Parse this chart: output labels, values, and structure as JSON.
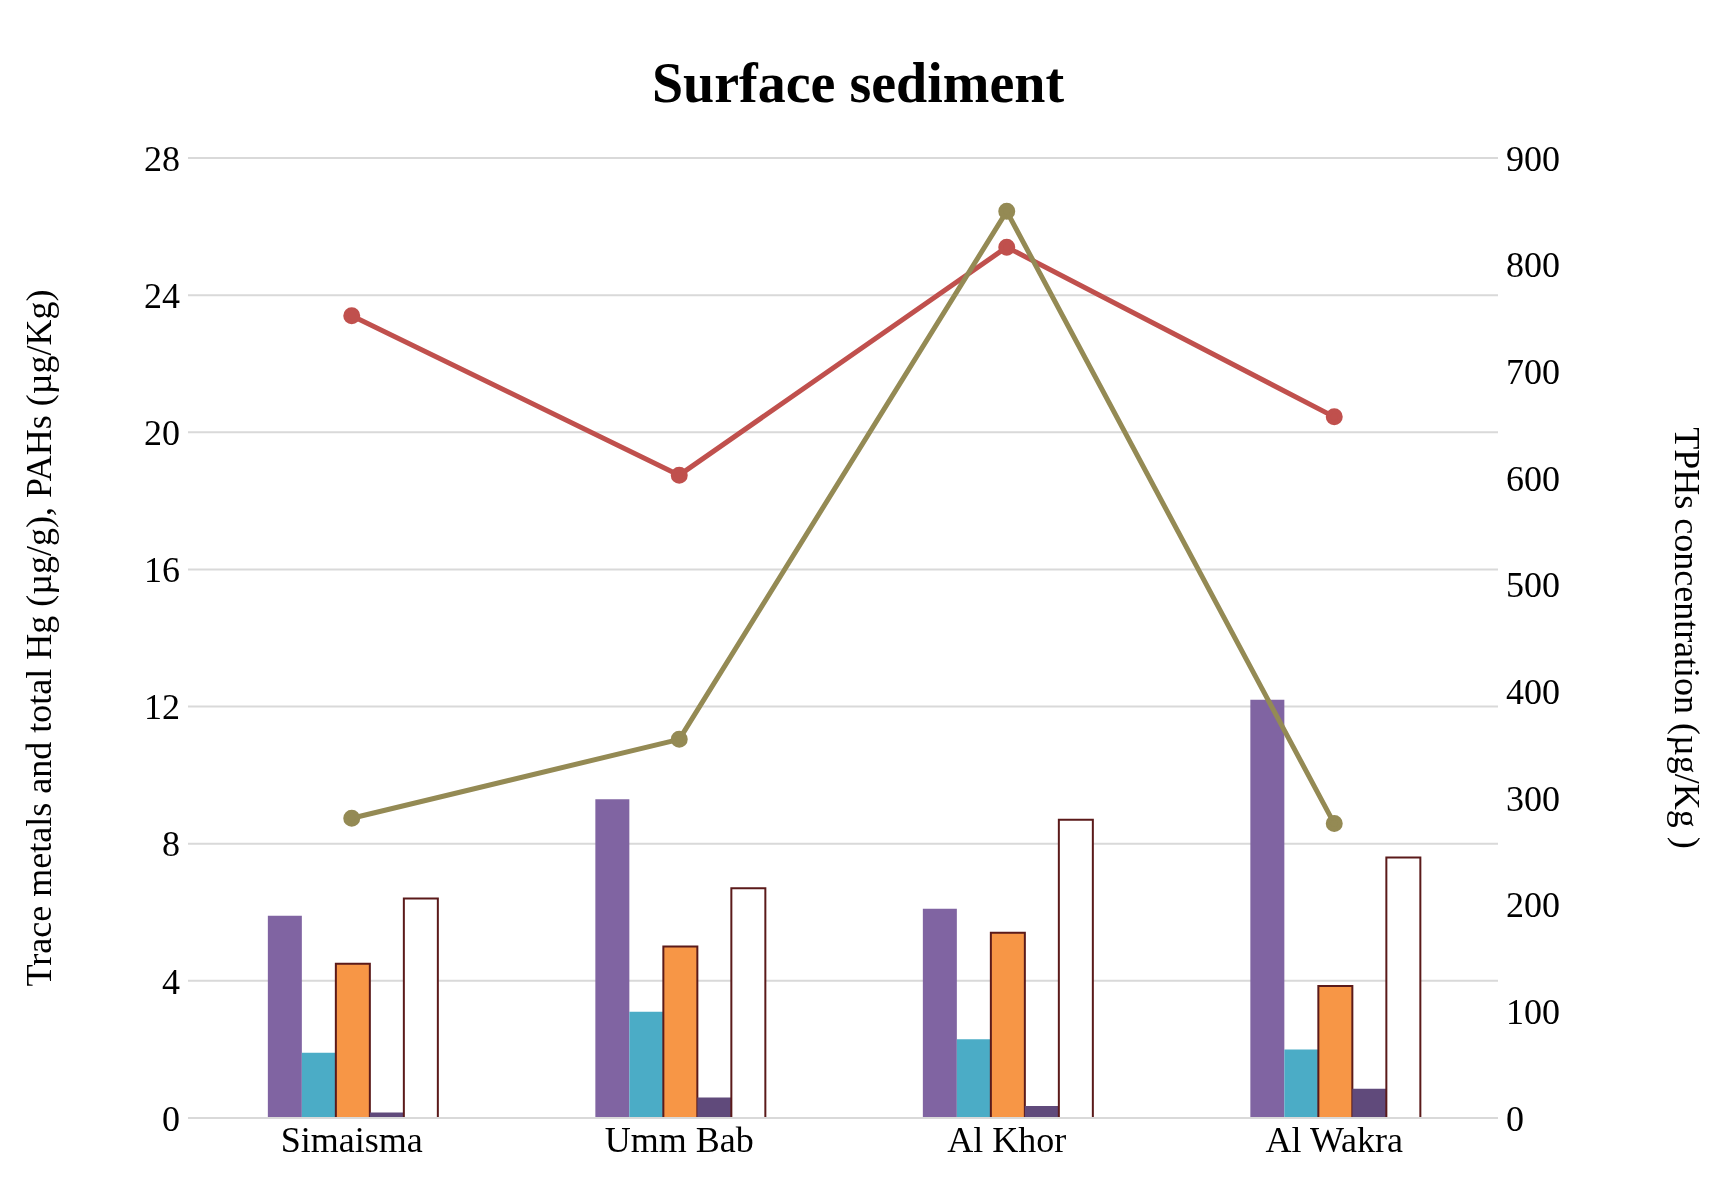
{
  "chart_data": {
    "type": "bar",
    "title": "Surface sediment",
    "ylabel": "Trace metals and total Hg (µg/g), PAHs (µg/Kg)",
    "y2label": "TPHs concentration (µg/Kg )",
    "categories": [
      "Simaisma",
      "Umm Bab",
      "Al Khor",
      "Al Wakra"
    ],
    "series": [
      {
        "color": "#9bbb59",
        "values": [
          0,
          0,
          0,
          0
        ]
      },
      {
        "color": "#8064a2",
        "values": [
          5.9,
          9.3,
          6.1,
          12.2
        ]
      },
      {
        "color": "#4bacc6",
        "values": [
          1.9,
          3.1,
          2.3,
          2.0
        ]
      },
      {
        "color": "#f79646",
        "values": [
          4.5,
          5.0,
          5.4,
          3.85
        ]
      },
      {
        "color": "#604a7b",
        "values": [
          0.16,
          0.6,
          0.35,
          0.85
        ]
      },
      {
        "color": "#ffffff",
        "values": [
          6.4,
          6.7,
          8.7,
          7.6
        ]
      },
      {
        "color": "#772c2a",
        "values": [
          0,
          0,
          0,
          0
        ]
      },
      {
        "type": "line",
        "color": "#c0504d",
        "values": [
          23.4,
          18.75,
          25.4,
          20.45
        ]
      },
      {
        "type": "line",
        "axis": "y2",
        "color": "#948a54",
        "values": [
          281,
          355,
          850,
          276
        ]
      }
    ],
    "ylim": [
      0,
      28
    ],
    "yticks": [
      0,
      4,
      8,
      12,
      16,
      20,
      24,
      28
    ],
    "y2lim": [
      0,
      900
    ],
    "y2ticks": [
      0,
      100,
      200,
      300,
      400,
      500,
      600,
      700,
      800,
      900
    ],
    "grid": "y",
    "marker": "circle"
  }
}
